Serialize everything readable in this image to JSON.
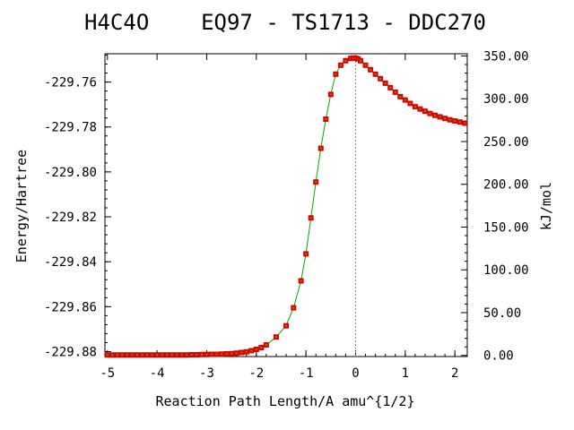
{
  "chart_data": {
    "type": "line",
    "title": "H4C4O    EQ97 - TS1713 - DDC270",
    "xlabel": "Reaction Path Length/A amu^{1/2}",
    "ylabel": "Energy/Hartree",
    "y2label": "kJ/mol",
    "xlim": [
      -5.05,
      2.25
    ],
    "ylim": [
      -229.8822,
      -229.7474
    ],
    "x_ticks": [
      -5,
      -4,
      -3,
      -2,
      -1,
      0,
      1,
      2
    ],
    "x_tick_labels": [
      "-5",
      "-4",
      "-3",
      "-2",
      "-1",
      "0",
      "1",
      "2"
    ],
    "y_ticks": [
      -229.88,
      -229.86,
      -229.84,
      -229.82,
      -229.8,
      -229.78,
      -229.76
    ],
    "y_tick_labels": [
      "-229.88",
      "-229.86",
      "-229.84",
      "-229.82",
      "-229.80",
      "-229.78",
      "-229.76"
    ],
    "y2_zero_hartree": -229.8817,
    "y2_ticks": [
      0,
      50,
      100,
      150,
      200,
      250,
      300,
      350
    ],
    "y2_tick_labels": [
      "0.00",
      "50.00",
      "100.00",
      "150.00",
      "200.00",
      "250.00",
      "300.00",
      "350.00"
    ],
    "ts_marker_x": 0,
    "grid": false,
    "colors": {
      "line": "#00aa00",
      "marker": "#dd0000",
      "marker_center": "#888800",
      "ts_line": "#888888"
    },
    "series": [
      {
        "x": [
          -5.0,
          -4.9,
          -4.8,
          -4.7,
          -4.6,
          -4.5,
          -4.4,
          -4.3,
          -4.2,
          -4.1,
          -4.0,
          -3.9,
          -3.8,
          -3.7,
          -3.6,
          -3.5,
          -3.4,
          -3.3,
          -3.2,
          -3.1,
          -3.0,
          -2.9,
          -2.8,
          -2.7,
          -2.6,
          -2.5,
          -2.4,
          -2.3,
          -2.2,
          -2.1,
          -2.0,
          -1.9,
          -1.8,
          -1.6,
          -1.4,
          -1.25,
          -1.1,
          -1.0,
          -0.9,
          -0.8,
          -0.7,
          -0.6,
          -0.5,
          -0.4,
          -0.3,
          -0.2,
          -0.1,
          -0.05,
          0.0,
          0.05,
          0.1,
          0.2,
          0.3,
          0.4,
          0.5,
          0.6,
          0.7,
          0.8,
          0.9,
          1.0,
          1.1,
          1.2,
          1.3,
          1.4,
          1.5,
          1.6,
          1.7,
          1.8,
          1.9,
          2.0,
          2.1,
          2.2
        ],
        "y": [
          -229.8815,
          -229.8815,
          -229.8815,
          -229.8815,
          -229.8815,
          -229.8815,
          -229.8815,
          -229.8815,
          -229.8815,
          -229.8815,
          -229.8815,
          -229.8815,
          -229.8815,
          -229.8815,
          -229.8815,
          -229.8815,
          -229.8815,
          -229.8814,
          -229.8814,
          -229.8813,
          -229.8813,
          -229.8812,
          -229.8812,
          -229.8811,
          -229.881,
          -229.8809,
          -229.8807,
          -229.8804,
          -229.8801,
          -229.8796,
          -229.879,
          -229.8782,
          -229.877,
          -229.8735,
          -229.8685,
          -229.8605,
          -229.8485,
          -229.8365,
          -229.8205,
          -229.8045,
          -229.7895,
          -229.7765,
          -229.7655,
          -229.7565,
          -229.7525,
          -229.7505,
          -229.7495,
          -229.7493,
          -229.7494,
          -229.7497,
          -229.7505,
          -229.7525,
          -229.7545,
          -229.7565,
          -229.7585,
          -229.7605,
          -229.7625,
          -229.7645,
          -229.7665,
          -229.768,
          -229.7695,
          -229.771,
          -229.772,
          -229.773,
          -229.774,
          -229.7748,
          -229.7755,
          -229.7762,
          -229.7768,
          -229.7773,
          -229.7778,
          -229.7783
        ]
      }
    ]
  }
}
